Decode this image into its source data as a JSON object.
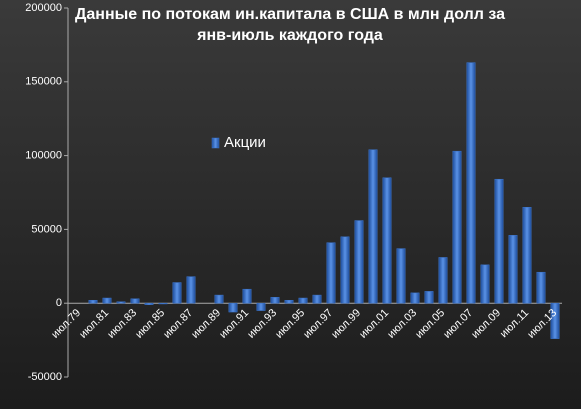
{
  "chart_data": {
    "type": "bar",
    "title": "Данные по потокам ин.капитала в США в млн долл за янв-июль каждого года",
    "categories": [
      "июл.79",
      null,
      "июл.81",
      null,
      "июл.83",
      null,
      "июл.85",
      null,
      "июл.87",
      null,
      "июл.89",
      null,
      "июл.91",
      null,
      "июл.93",
      null,
      "июл.95",
      null,
      "июл.97",
      null,
      "июл.99",
      null,
      "июл.01",
      null,
      "июл.03",
      null,
      "июл.05",
      null,
      "июл.07",
      null,
      "июл.09",
      null,
      "июл.11",
      null,
      "июл.13"
    ],
    "series": [
      {
        "name": "Акции",
        "color": "#3b73c9",
        "values": [
          0,
          2000,
          3500,
          1000,
          3000,
          -1000,
          -500,
          14000,
          18000,
          0,
          5500,
          -6000,
          9500,
          -5000,
          4000,
          2000,
          3500,
          5500,
          41000,
          45000,
          56000,
          104000,
          85000,
          37000,
          7000,
          8000,
          31000,
          103000,
          163000,
          26000,
          84000,
          46000,
          65000,
          21000,
          -24000
        ]
      }
    ],
    "ylim": [
      -50000,
      200000
    ],
    "yticks": [
      -50000,
      0,
      50000,
      100000,
      150000,
      200000
    ],
    "legend": "upper-left"
  }
}
